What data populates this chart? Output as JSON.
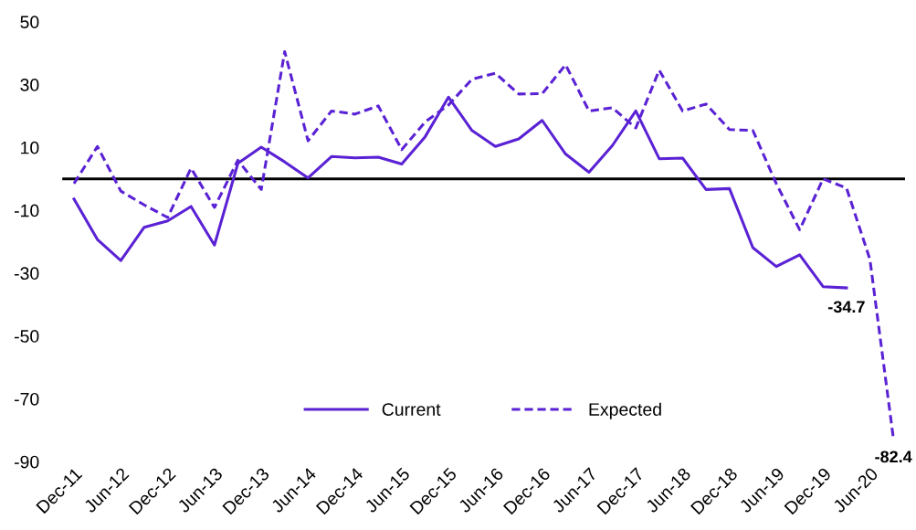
{
  "chart_data": {
    "type": "line",
    "categories": [
      "Dec-11",
      null,
      "Jun-12",
      null,
      "Dec-12",
      null,
      "Jun-13",
      null,
      "Dec-13",
      null,
      "Jun-14",
      null,
      "Dec-14",
      null,
      "Jun-15",
      null,
      "Dec-15",
      null,
      "Jun-16",
      null,
      "Dec-16",
      null,
      "Jun-17",
      null,
      "Dec-17",
      null,
      "Jun-18",
      null,
      "Dec-18",
      null,
      "Jun-19",
      null,
      "Dec-19",
      null,
      "Jun-20",
      null
    ],
    "series": [
      {
        "name": "Current",
        "color": "#5a22d4",
        "line_style": "solid",
        "values": [
          -6.4,
          -19.3,
          -26,
          -15.4,
          -13.4,
          -8.8,
          -21.1,
          4.9,
          10.1,
          5.4,
          0.3,
          7.1,
          6.7,
          6.9,
          4.7,
          13.4,
          26,
          15.4,
          10.3,
          12.7,
          18.6,
          7.9,
          2.1,
          10.6,
          21.6,
          6.4,
          6.6,
          -3.4,
          -3.1,
          -21.9,
          -27.9,
          -24.2,
          -34.3,
          -34.7,
          null,
          null
        ],
        "value_labels": [
          null,
          null,
          null,
          null,
          null,
          null,
          null,
          null,
          null,
          null,
          null,
          null,
          null,
          null,
          null,
          null,
          null,
          null,
          null,
          null,
          null,
          null,
          null,
          null,
          null,
          null,
          null,
          null,
          null,
          null,
          null,
          null,
          null,
          "-34.7",
          null,
          null
        ]
      },
      {
        "name": "Expected",
        "color": "#5a22d4",
        "line_style": "dashed",
        "values": [
          -1.5,
          10.3,
          -3.9,
          -8.3,
          -12.3,
          3.4,
          -9.1,
          5.9,
          -3.4,
          40.5,
          12.1,
          21.6,
          20.6,
          23.2,
          9.3,
          18.1,
          23.5,
          31.7,
          33.6,
          27,
          27.1,
          36.3,
          21.6,
          22.6,
          16.2,
          34.6,
          21.6,
          23.8,
          15.7,
          15.4,
          -1.5,
          -16.2,
          0,
          -2.9,
          -25.6,
          -82.4
        ],
        "value_labels": [
          null,
          null,
          null,
          null,
          null,
          null,
          null,
          null,
          null,
          null,
          null,
          null,
          null,
          null,
          null,
          null,
          null,
          null,
          null,
          null,
          null,
          null,
          null,
          null,
          null,
          null,
          null,
          null,
          null,
          null,
          null,
          null,
          null,
          null,
          null,
          "-82.4"
        ]
      }
    ],
    "ylim": [
      -90,
      50
    ],
    "yticks": [
      -90,
      -70,
      -50,
      -30,
      -10,
      10,
      30,
      50
    ],
    "ref_lines": [
      {
        "axis": "y",
        "value": 0,
        "color": "#000000"
      }
    ],
    "grid": false,
    "legend": "bottom"
  }
}
